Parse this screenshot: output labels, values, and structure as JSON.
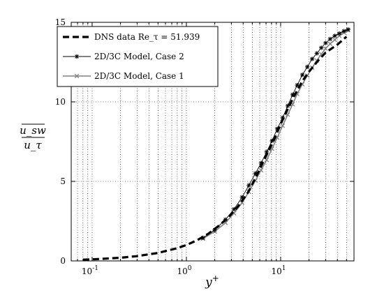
{
  "chart_data": {
    "type": "line",
    "title": "",
    "xlabel": "y+",
    "ylabel": "u_sw / u_τ",
    "xscale": "log",
    "xlim": [
      0.06,
      60
    ],
    "ylim": [
      0,
      15
    ],
    "grid": "dotted",
    "legend_position": "top-left",
    "x_tick_labels": [
      "10-1",
      "100",
      "101"
    ],
    "y_tick_labels": [
      "0",
      "5",
      "10",
      "15"
    ],
    "series": [
      {
        "name": "DNS data Re_τ = 51.939",
        "style": "dashed",
        "color": "#000000",
        "x": [
          0.08,
          0.12,
          0.2,
          0.3,
          0.5,
          0.8,
          1.0,
          1.3,
          1.7,
          2.2,
          2.8,
          3.5,
          4.5,
          5.5,
          7.0,
          8.5,
          10.0,
          12.0,
          14.0,
          17.0,
          20.0,
          25.0,
          30.0,
          40.0,
          50.0
        ],
        "y": [
          0.08,
          0.12,
          0.2,
          0.3,
          0.5,
          0.8,
          1.0,
          1.3,
          1.7,
          2.2,
          2.75,
          3.4,
          4.3,
          5.3,
          6.6,
          7.6,
          8.6,
          9.6,
          10.4,
          11.3,
          11.9,
          12.6,
          13.1,
          13.6,
          14.1
        ]
      },
      {
        "name": "2D/3C Model, Case 2",
        "style": "solid-star",
        "color": "#000000",
        "x": [
          1.5,
          2.0,
          2.6,
          3.2,
          3.9,
          4.6,
          5.4,
          6.2,
          7.1,
          8.1,
          9.2,
          10.5,
          11.9,
          13.4,
          15.0,
          17.0,
          19.2,
          21.6,
          24.2,
          27.0,
          30.0,
          33.5,
          37.5,
          42.0,
          47.0,
          52.0
        ],
        "y": [
          1.45,
          1.95,
          2.6,
          3.25,
          4.0,
          4.75,
          5.5,
          6.15,
          6.85,
          7.55,
          8.3,
          9.0,
          9.75,
          10.45,
          11.05,
          11.7,
          12.2,
          12.7,
          13.05,
          13.4,
          13.7,
          13.95,
          14.15,
          14.3,
          14.45,
          14.55
        ]
      },
      {
        "name": "2D/3C Model, Case 1",
        "style": "solid-x",
        "color": "#808080",
        "x": [
          1.5,
          2.0,
          2.6,
          3.2,
          3.9,
          4.6,
          5.4,
          6.2,
          7.1,
          8.1,
          9.2,
          10.5,
          11.9,
          13.4,
          15.0,
          17.0,
          19.2,
          21.6,
          24.2,
          27.0,
          30.0,
          33.5,
          37.5,
          42.0,
          47.0,
          52.0
        ],
        "y": [
          1.4,
          1.85,
          2.4,
          3.0,
          3.65,
          4.35,
          5.05,
          5.7,
          6.35,
          7.05,
          7.75,
          8.5,
          9.2,
          9.85,
          10.5,
          11.1,
          11.65,
          12.15,
          12.6,
          13.0,
          13.35,
          13.65,
          13.9,
          14.15,
          14.35,
          14.5
        ]
      }
    ]
  }
}
